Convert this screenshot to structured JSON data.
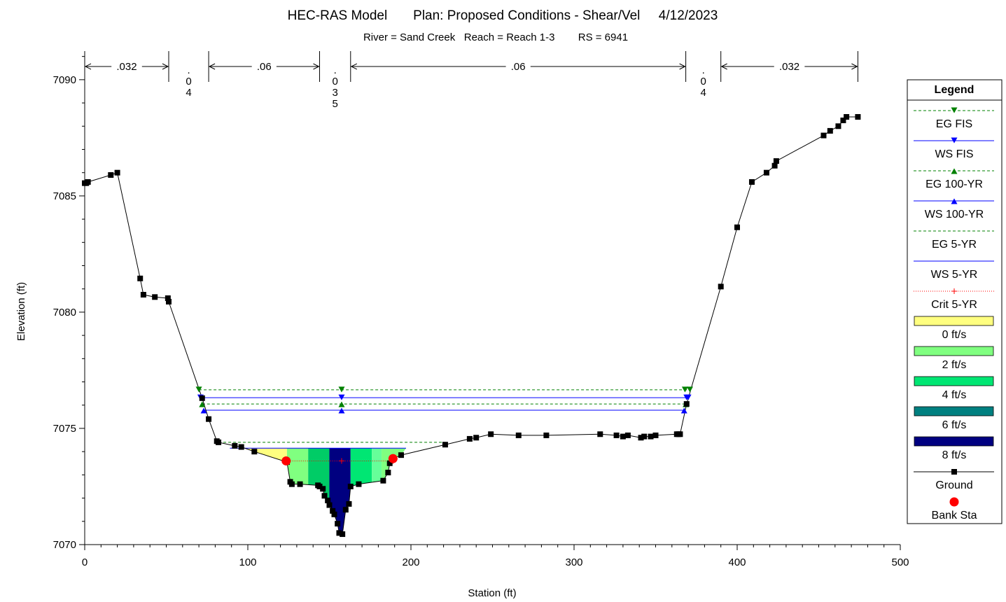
{
  "chart_data": {
    "type": "line",
    "title": "HEC-RAS Model       Plan: Proposed Conditions - Shear/Vel     4/12/2023",
    "subtitle": "River = Sand Creek   Reach = Reach 1-3        RS = 6941",
    "xlabel": "Station (ft)",
    "ylabel": "Elevation (ft)",
    "xlim": [
      0,
      500
    ],
    "ylim": [
      7070,
      7091.2
    ],
    "x_ticks": [
      "0",
      "100",
      "200",
      "300",
      "400",
      "500"
    ],
    "y_ticks": [
      "7070",
      "7075",
      "7080",
      "7085",
      "7090"
    ],
    "grid": false,
    "legend_position": "right",
    "legend_title": "Legend",
    "mannings": {
      "boundaries": [
        0,
        51.5,
        76,
        144,
        163,
        368.5,
        390,
        474
      ],
      "labels": [
        ".032",
        ".04",
        ".06",
        ".035",
        ".06",
        ".04",
        ".032"
      ]
    },
    "series": [
      {
        "name": "EG FIS",
        "color": "#008000",
        "style": "dashed",
        "marker": "tri-down",
        "points": [
          [
            70,
            7076.66
          ],
          [
            368,
            7076.66
          ],
          [
            157.5,
            7076.66
          ],
          [
            371,
            7076.66
          ]
        ]
      },
      {
        "name": "WS FIS",
        "color": "#0000ff",
        "style": "solid",
        "marker": "tri-down",
        "points": [
          [
            71,
            7076.32
          ],
          [
            369,
            7076.32
          ],
          [
            157.5,
            7076.32
          ],
          [
            370,
            7076.32
          ]
        ]
      },
      {
        "name": "EG 100-YR",
        "color": "#008000",
        "style": "dashed",
        "marker": "tri-up",
        "points": [
          [
            72,
            7076.05
          ],
          [
            368.5,
            7076.05
          ],
          [
            157.5,
            7076.05
          ]
        ]
      },
      {
        "name": "WS 100-YR",
        "color": "#0000ff",
        "style": "solid",
        "marker": "tri-up",
        "points": [
          [
            73,
            7075.78
          ],
          [
            367.5,
            7075.78
          ],
          [
            157.5,
            7075.78
          ]
        ]
      },
      {
        "name": "EG 5-YR",
        "color": "#008000",
        "style": "dashed",
        "marker": "none",
        "points": [
          [
            82,
            7074.4
          ],
          [
            221,
            7074.4
          ]
        ]
      },
      {
        "name": "WS 5-YR",
        "color": "#0000ff",
        "style": "solid",
        "marker": "none",
        "points": [
          [
            89,
            7074.15
          ],
          [
            197,
            7074.15
          ]
        ]
      },
      {
        "name": "Crit 5-YR",
        "color": "#ff0000",
        "style": "dotted",
        "marker": "plus",
        "points": [
          [
            123.5,
            7073.6
          ],
          [
            189,
            7073.6
          ],
          [
            157.5,
            7073.6
          ]
        ]
      },
      {
        "name": "Ground",
        "color": "#000000",
        "style": "solid",
        "marker": "square",
        "points": [
          [
            0,
            7085.55
          ],
          [
            1,
            7085.55
          ],
          [
            2,
            7085.6
          ],
          [
            16,
            7085.9
          ],
          [
            20,
            7086.0
          ],
          [
            34,
            7081.45
          ],
          [
            36,
            7080.75
          ],
          [
            43,
            7080.65
          ],
          [
            51,
            7080.6
          ],
          [
            51.5,
            7080.45
          ],
          [
            72,
            7076.3
          ],
          [
            76,
            7075.4
          ],
          [
            81,
            7074.45
          ],
          [
            82,
            7074.4
          ],
          [
            92,
            7074.25
          ],
          [
            96,
            7074.2
          ],
          [
            104,
            7074.0
          ],
          [
            124,
            7073.55
          ],
          [
            126,
            7072.7
          ],
          [
            127,
            7072.6
          ],
          [
            132,
            7072.6
          ],
          [
            143,
            7072.55
          ],
          [
            144,
            7072.5
          ],
          [
            146,
            7072.4
          ],
          [
            147,
            7072.1
          ],
          [
            149,
            7071.9
          ],
          [
            150,
            7071.7
          ],
          [
            152,
            7071.45
          ],
          [
            153,
            7071.3
          ],
          [
            155,
            7070.9
          ],
          [
            156,
            7070.5
          ],
          [
            158,
            7070.45
          ],
          [
            160,
            7071.5
          ],
          [
            162,
            7071.75
          ],
          [
            163,
            7072.5
          ],
          [
            168,
            7072.6
          ],
          [
            183,
            7072.75
          ],
          [
            186,
            7073.1
          ],
          [
            187,
            7073.5
          ],
          [
            189,
            7073.7
          ],
          [
            194,
            7073.85
          ],
          [
            221,
            7074.3
          ],
          [
            236,
            7074.55
          ],
          [
            240,
            7074.6
          ],
          [
            249,
            7074.75
          ],
          [
            266,
            7074.7
          ],
          [
            283,
            7074.7
          ],
          [
            316,
            7074.75
          ],
          [
            326,
            7074.7
          ],
          [
            330,
            7074.65
          ],
          [
            333,
            7074.7
          ],
          [
            341,
            7074.6
          ],
          [
            343,
            7074.65
          ],
          [
            347,
            7074.65
          ],
          [
            350,
            7074.7
          ],
          [
            363,
            7074.75
          ],
          [
            364,
            7074.75
          ],
          [
            365,
            7074.75
          ],
          [
            369,
            7076.05
          ],
          [
            390,
            7081.1
          ],
          [
            400,
            7083.65
          ],
          [
            409,
            7085.6
          ],
          [
            418,
            7086.0
          ],
          [
            423,
            7086.3
          ],
          [
            424,
            7086.5
          ],
          [
            453,
            7087.6
          ],
          [
            457,
            7087.8
          ],
          [
            462,
            7088.0
          ],
          [
            465,
            7088.25
          ],
          [
            467,
            7088.4
          ],
          [
            474,
            7088.4
          ]
        ]
      },
      {
        "name": "Bank Sta",
        "color": "#ff0000",
        "style": "none",
        "marker": "circle",
        "points": [
          [
            123.5,
            7073.6
          ],
          [
            189,
            7073.7
          ]
        ]
      }
    ],
    "velocity_legend": [
      {
        "name": "0 ft/s",
        "color": "#ffff80"
      },
      {
        "name": "2 ft/s",
        "color": "#80ff80"
      },
      {
        "name": "4 ft/s",
        "color": "#00e673"
      },
      {
        "name": "6 ft/s",
        "color": "#008080"
      },
      {
        "name": "8 ft/s",
        "color": "#000080"
      }
    ],
    "velocity_bands": [
      {
        "x0": 89,
        "x1": 124,
        "color": "#ffff80"
      },
      {
        "x0": 124,
        "x1": 137,
        "color": "#80ff80"
      },
      {
        "x0": 137,
        "x1": 150,
        "color": "#00cc66"
      },
      {
        "x0": 150,
        "x1": 163,
        "color": "#000080"
      },
      {
        "x0": 163,
        "x1": 176,
        "color": "#00e673"
      },
      {
        "x0": 176,
        "x1": 182,
        "color": "#66ff99"
      },
      {
        "x0": 182,
        "x1": 197,
        "color": "#80ff80"
      }
    ]
  }
}
